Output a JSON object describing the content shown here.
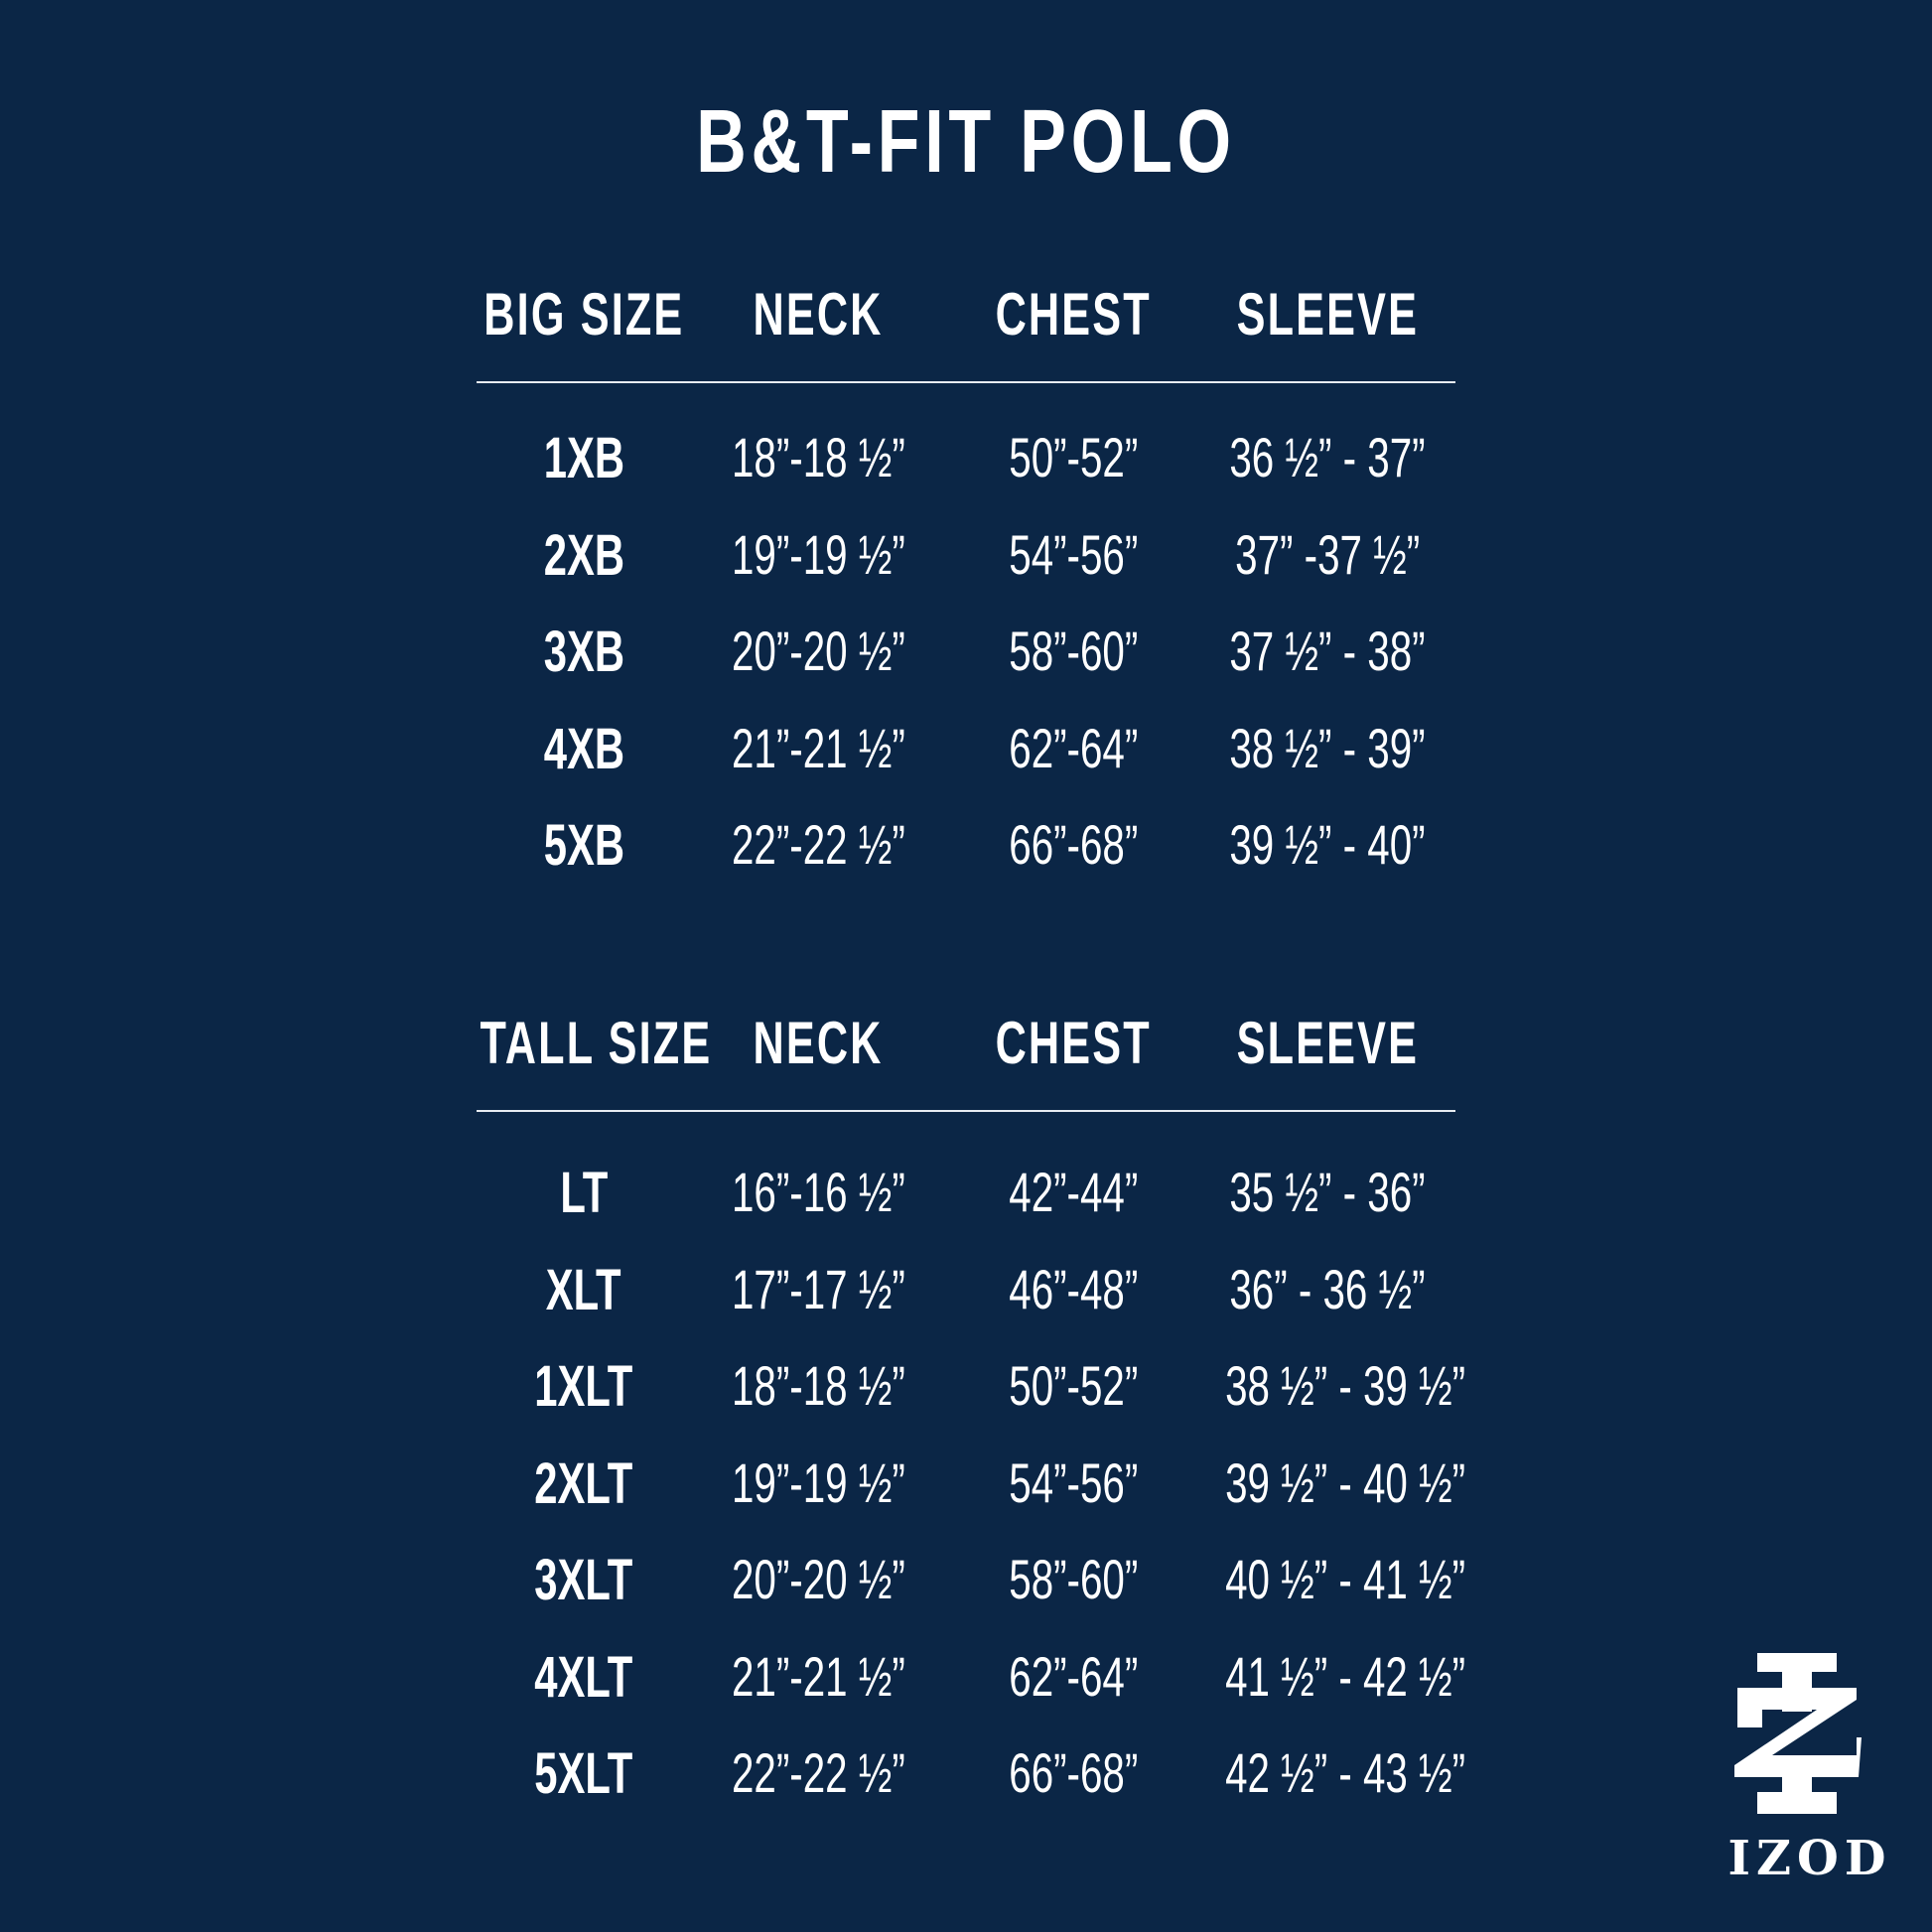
{
  "title": "B&T-FIT POLO",
  "big": {
    "headers": [
      "BIG SIZE",
      "NECK",
      "CHEST",
      "SLEEVE"
    ],
    "rows": [
      [
        "1XB",
        "18”-18 ½”",
        "50”-52”",
        "36 ½” - 37”"
      ],
      [
        "2XB",
        "19”-19 ½”",
        "54”-56”",
        "37” -37 ½”"
      ],
      [
        "3XB",
        "20”-20 ½”",
        "58”-60”",
        "37 ½” - 38”"
      ],
      [
        "4XB",
        "21”-21 ½”",
        "62”-64”",
        "38 ½” - 39”"
      ],
      [
        "5XB",
        "22”-22 ½”",
        "66”-68”",
        "39 ½” - 40”"
      ]
    ]
  },
  "tall": {
    "headers": [
      "TALL SIZE",
      "NECK",
      "CHEST",
      "SLEEVE"
    ],
    "rows": [
      [
        "LT",
        "16”-16 ½”",
        "42”-44”",
        "35 ½” - 36”"
      ],
      [
        "XLT",
        "17”-17 ½”",
        "46”-48”",
        "36” - 36 ½”"
      ],
      [
        "1XLT",
        "18”-18 ½”",
        "50”-52”",
        "38 ½” - 39 ½”"
      ],
      [
        "2XLT",
        "19”-19 ½”",
        "54”-56”",
        "39 ½” - 40 ½”"
      ],
      [
        "3XLT",
        "20”-20 ½”",
        "58”-60”",
        "40 ½” - 41 ½”"
      ],
      [
        "4XLT",
        "21”-21 ½”",
        "62”-64”",
        "41 ½” - 42 ½”"
      ],
      [
        "5XLT",
        "22”-22 ½”",
        "66”-68”",
        "42 ½” - 43 ½”"
      ]
    ]
  },
  "logo": {
    "text": "IZOD"
  },
  "colors": {
    "background": "#0b2646",
    "text": "#ffffff"
  }
}
